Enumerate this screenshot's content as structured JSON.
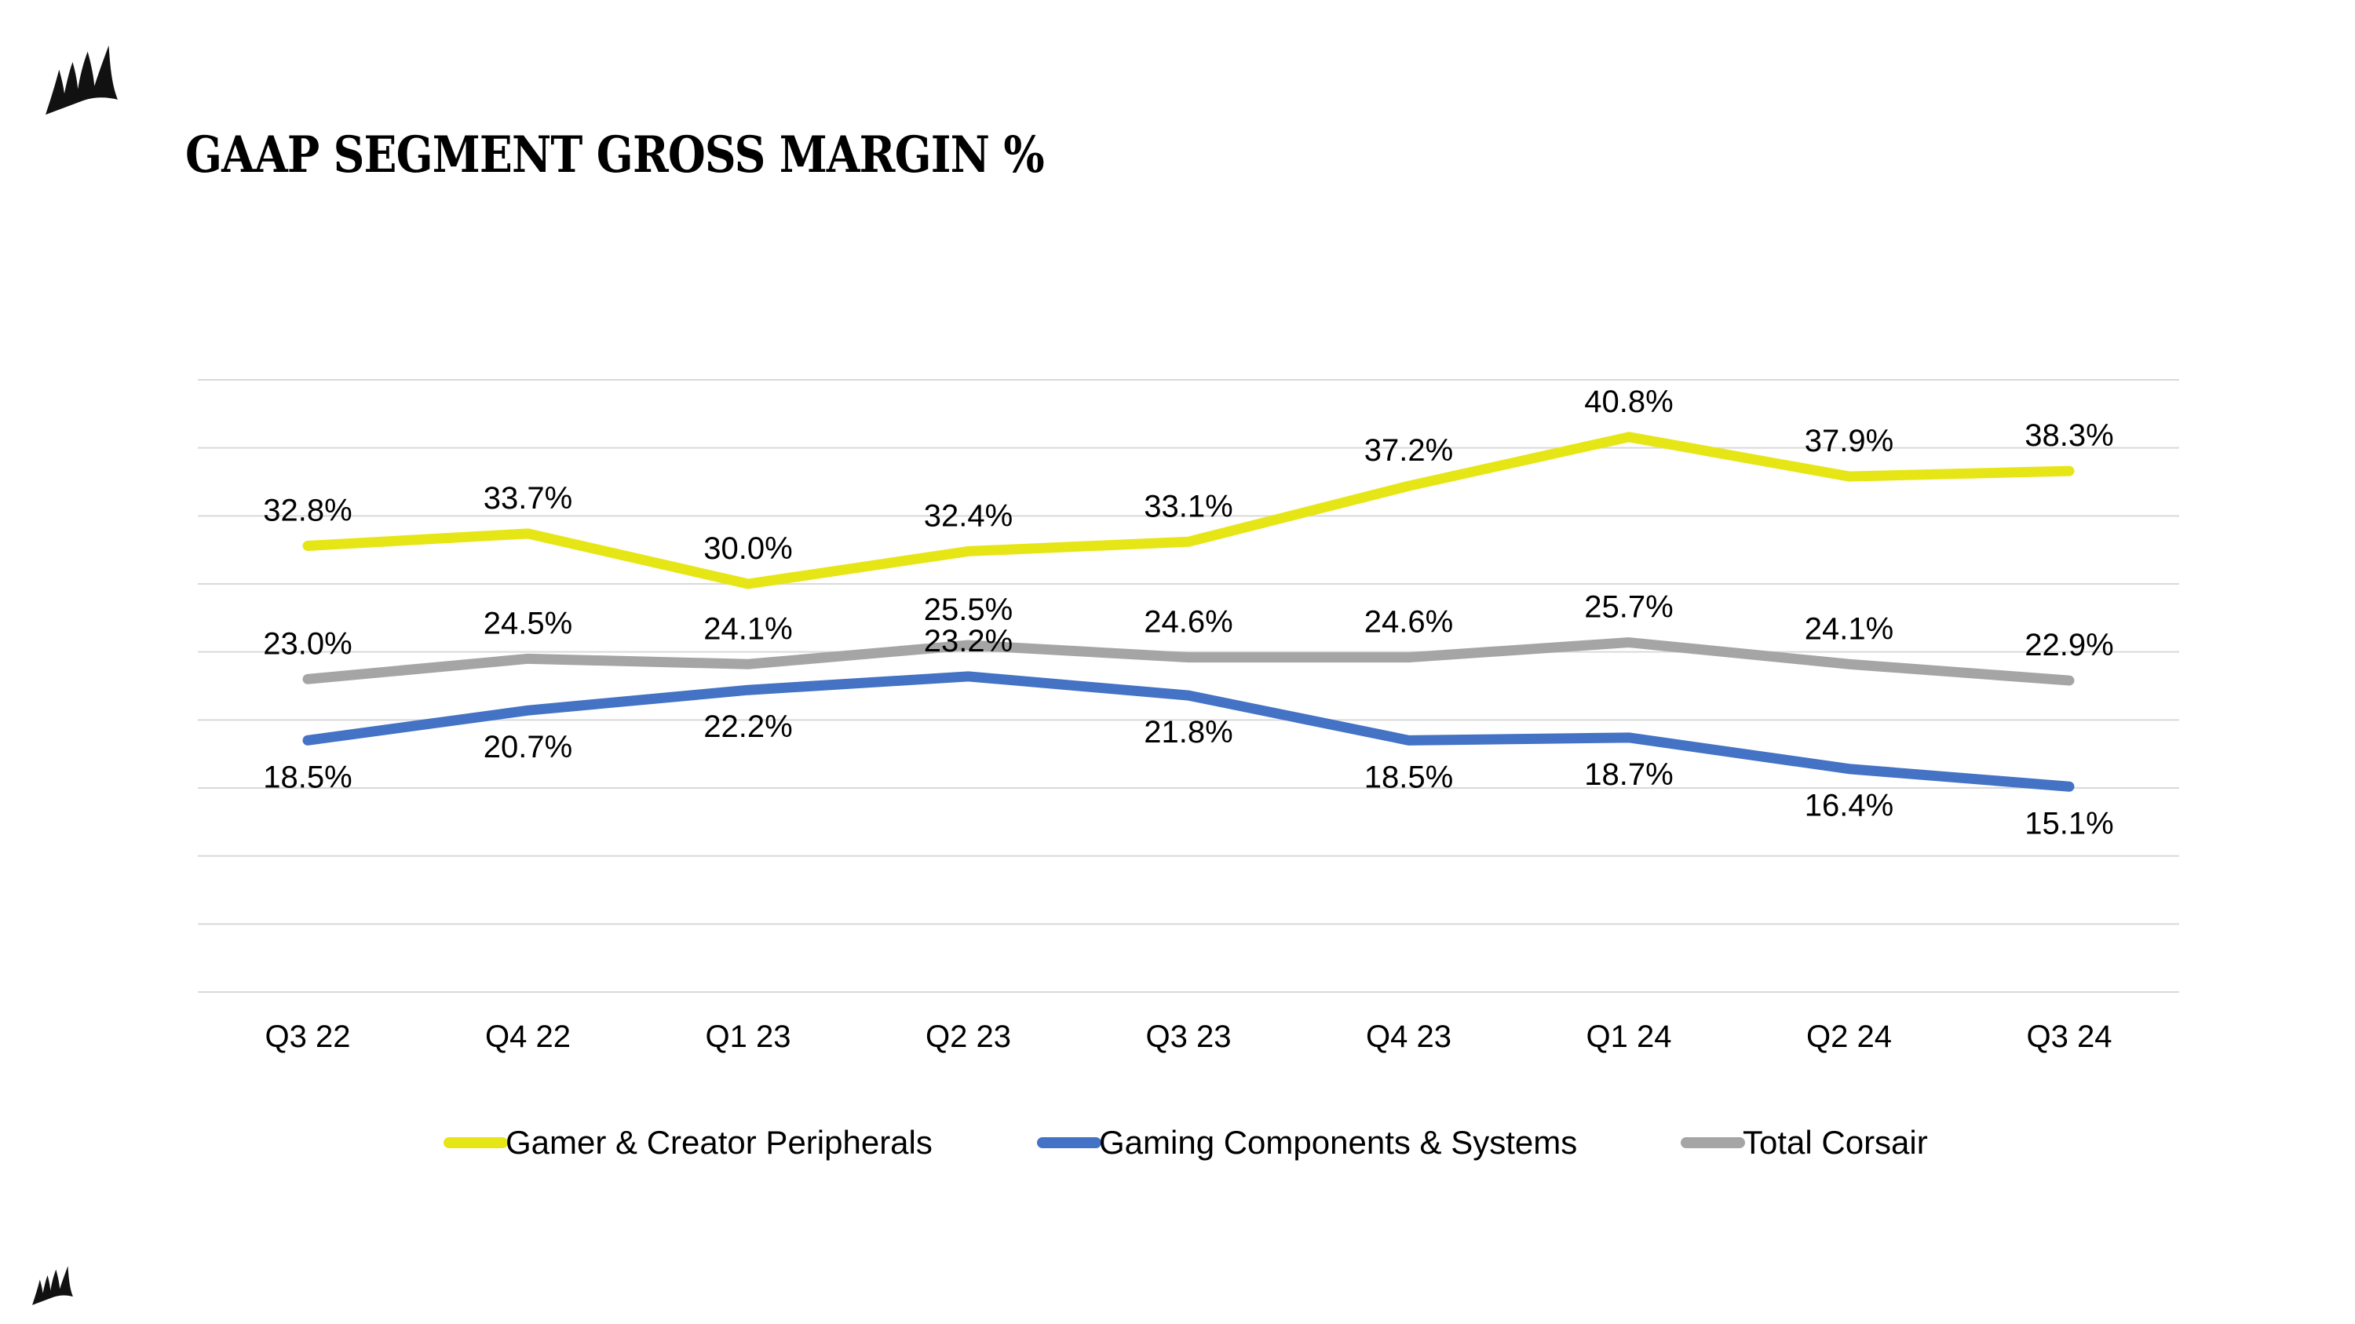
{
  "title": "GAAP SEGMENT GROSS MARGIN %",
  "chart_data": {
    "type": "line",
    "title": "",
    "xlabel": "",
    "ylabel": "",
    "ylim": [
      0,
      45
    ],
    "grid": true,
    "legend_position": "bottom",
    "categories": [
      "Q3 22",
      "Q4 22",
      "Q1 23",
      "Q2 23",
      "Q3 23",
      "Q4 23",
      "Q1 24",
      "Q2 24",
      "Q3 24"
    ],
    "series": [
      {
        "name": "Gamer & Creator Peripherals",
        "color": "#e6e617",
        "values": [
          32.8,
          33.7,
          30.0,
          32.4,
          33.1,
          37.2,
          40.8,
          37.9,
          38.3
        ],
        "labels": [
          "32.8%",
          "33.7%",
          "30.0%",
          "32.4%",
          "33.1%",
          "37.2%",
          "40.8%",
          "37.9%",
          "38.3%"
        ]
      },
      {
        "name": "Gaming Components & Systems",
        "color": "#4472c4",
        "values": [
          18.5,
          20.7,
          22.2,
          23.2,
          21.8,
          18.5,
          18.7,
          16.4,
          15.1
        ],
        "labels": [
          "18.5%",
          "20.7%",
          "22.2%",
          "23.2%",
          "21.8%",
          "18.5%",
          "18.7%",
          "16.4%",
          "15.1%"
        ]
      },
      {
        "name": "Total Corsair",
        "color": "#a5a5a5",
        "values": [
          23.0,
          24.5,
          24.1,
          25.5,
          24.6,
          24.6,
          25.7,
          24.1,
          22.9
        ],
        "labels": [
          "23.0%",
          "24.5%",
          "24.1%",
          "25.5%",
          "24.6%",
          "24.6%",
          "25.7%",
          "24.1%",
          "22.9%"
        ]
      }
    ]
  },
  "icons": {
    "top": "corsair-logo-icon",
    "bottom": "corsair-logo-icon"
  }
}
